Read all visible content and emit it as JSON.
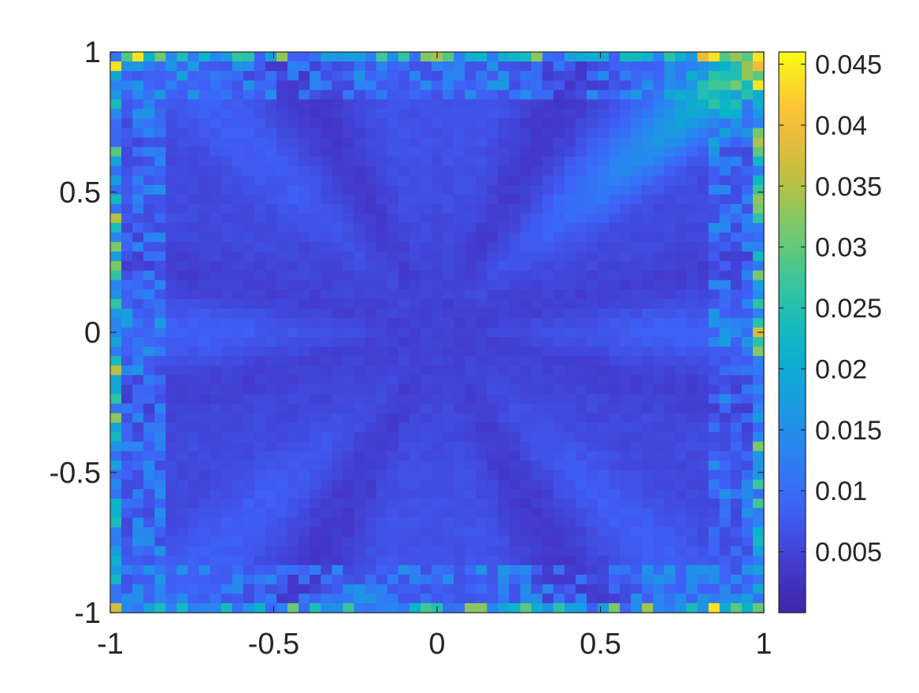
{
  "chart_data": {
    "type": "heatmap",
    "title": "",
    "xlabel": "",
    "ylabel": "",
    "grid": false,
    "xlim": [
      -1,
      1
    ],
    "ylim": [
      -1,
      1
    ],
    "grid_resolution": [
      59,
      59
    ],
    "x_ticks": [
      -1,
      -0.5,
      0,
      0.5,
      1
    ],
    "x_tick_labels": [
      "-1",
      "-0.5",
      "0",
      "0.5",
      "1"
    ],
    "y_ticks": [
      -1,
      -0.5,
      0,
      0.5,
      1
    ],
    "y_tick_labels": [
      "-1",
      "-0.5",
      "0",
      "0.5",
      "1"
    ],
    "colorbar": {
      "position": "right",
      "colormap": "parula",
      "clim": [
        0,
        0.046
      ],
      "ticks": [
        0.005,
        0.01,
        0.015,
        0.02,
        0.025,
        0.03,
        0.035,
        0.04,
        0.045
      ],
      "tick_labels": [
        "0.005",
        "0.01",
        "0.015",
        "0.02",
        "0.025",
        "0.03",
        "0.035",
        "0.04",
        "0.045"
      ]
    },
    "value_pattern": "Approximate error field: low values (~0.002-0.008) over most of the interior with faint radial streaks from the center; larger values (0.01-0.045) concentrated along the boundary edges; an elevated diagonal band (~0.02-0.04) toward the top-right corner; maxima ~0.045 near corners (top-left, top-right, bottom-right)."
  }
}
